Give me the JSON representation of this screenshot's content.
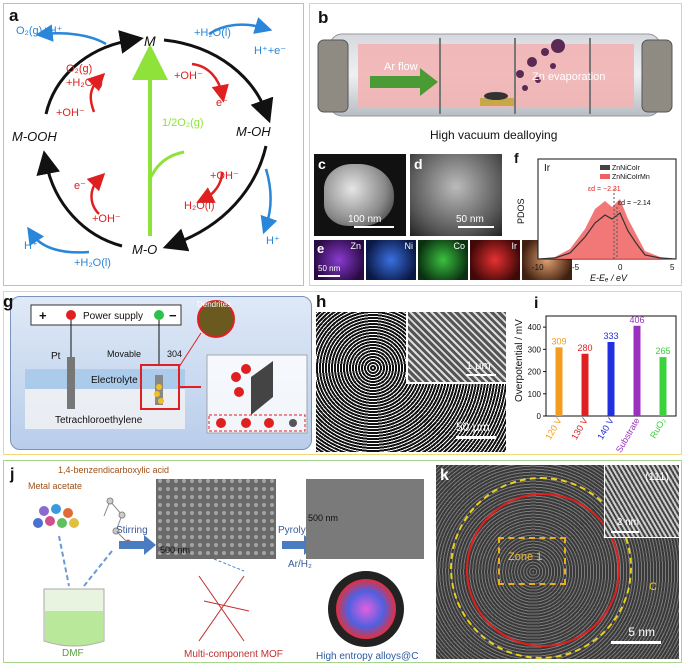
{
  "panels": {
    "a": {
      "label": "a",
      "nodes": {
        "M": "M",
        "MOH": "M-OH",
        "MO": "M-O",
        "MOOH": "M-OOH"
      },
      "top_right": {
        "h2o": "+H₂O(l)",
        "products": "H⁺+e⁻",
        "oh": "+OH⁻",
        "e": "e⁻"
      },
      "top_left": {
        "o2h": "O₂(g)+H⁺",
        "o2": "O₂(g)",
        "h2o": "+H₂O(l)",
        "oh": "+OH⁻"
      },
      "center": {
        "half_o2": "1/2O₂(g)"
      },
      "right": {
        "oh": "+OH⁻",
        "h2o": "H₂O(l)",
        "h": "H⁺"
      },
      "bottom_left": {
        "e": "e⁻",
        "oh": "+OH⁻",
        "h": "H⁺",
        "h2o": "+H₂O(l)"
      },
      "colors": {
        "black": "#111111",
        "red": "#e02020",
        "blue": "#2a86d8",
        "green": "#8ee23a"
      }
    },
    "b": {
      "label": "b",
      "ar_flow": "Ar flow",
      "zn_evap": "Zn evaporation",
      "caption": "High vacuum dealloying"
    },
    "c": {
      "label": "c",
      "scale": "100 nm"
    },
    "d": {
      "label": "d",
      "scale": "50 nm"
    },
    "e": {
      "label": "e",
      "scale": "50 nm",
      "elements": [
        "Zn",
        "Ni",
        "Co",
        "Ir",
        "Mn"
      ]
    },
    "f": {
      "label": "f",
      "element": "Ir",
      "legend": [
        "ZnNiCoIr",
        "ZnNiCoIrMn"
      ],
      "ylabel": "PDOS",
      "xlabel": "E-Eₑ / eV",
      "xticks": [
        "-10",
        "-5",
        "0",
        "5"
      ],
      "ed1": "εd = −2.31",
      "ed2": "εd = −2.14"
    },
    "g": {
      "label": "g",
      "power": "Power supply",
      "plus": "+",
      "minus": "−",
      "pt": "Pt",
      "movable": "Movable",
      "steel": "304",
      "electrolyte": "Electrolyte",
      "solvent": "Tetrachloroethylene",
      "dendrites": "Dendrites"
    },
    "h": {
      "label": "h",
      "scale_inset": "1 μm",
      "scale_main": "50 μm"
    },
    "i": {
      "label": "i"
    },
    "j": {
      "label": "j",
      "metal": "Metal acetate",
      "acid": "1,4-benzendicarboxylic acid",
      "stirring": "Stirring",
      "pyrolysis": "Pyrolysis",
      "gas": "Ar/H₂",
      "dmf": "DMF",
      "scale1": "500 nm",
      "scale2": "500 nm",
      "mof": "Multi-component MOF",
      "hea": "High entropy alloys@C"
    },
    "k": {
      "label": "k",
      "facet": "(111)",
      "inset_scale": "2 nm",
      "zone": "Zone 1",
      "c": "C",
      "scale": "5 nm"
    }
  },
  "chart_data": {
    "type": "bar",
    "categories": [
      "120 V",
      "130 V",
      "140 V",
      "Substrate",
      "RuO₂"
    ],
    "values": [
      309,
      280,
      333,
      406,
      265
    ],
    "colors": [
      "#f39c1f",
      "#e02020",
      "#2030e0",
      "#9b2fc0",
      "#3cd23c"
    ],
    "title": "",
    "xlabel": "",
    "ylabel": "Overpotential / mV",
    "ylim": [
      0,
      450
    ],
    "yticks": [
      0,
      100,
      200,
      300,
      400
    ]
  }
}
